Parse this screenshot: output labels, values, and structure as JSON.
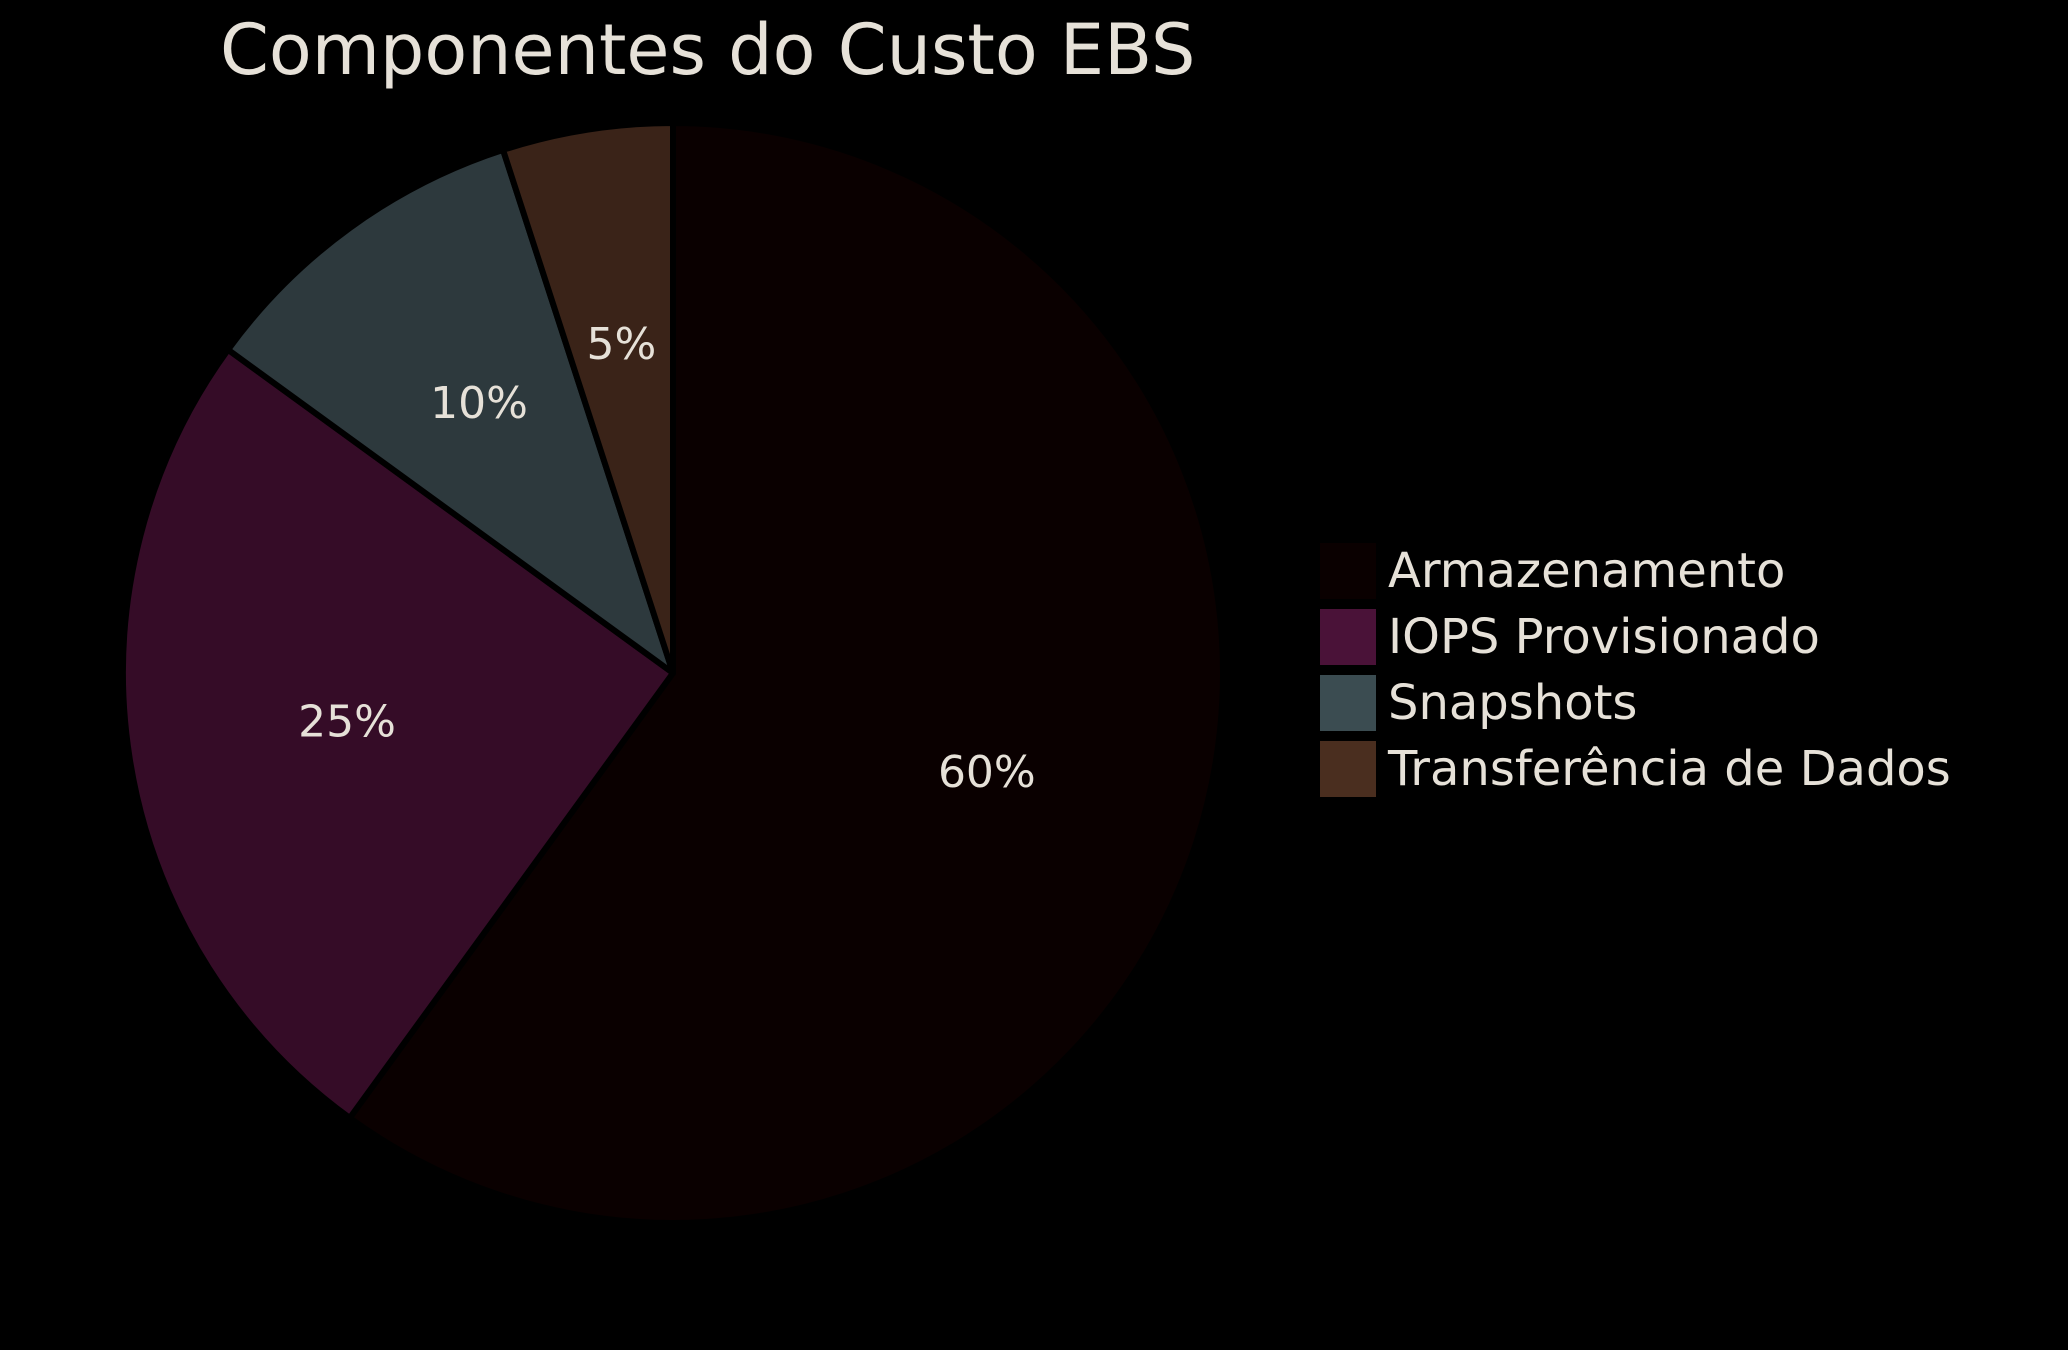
{
  "chart_data": {
    "type": "pie",
    "title": "Componentes do Custo EBS",
    "categories": [
      "Armazenamento",
      "IOPS Provisionado",
      "Snapshots",
      "Transferência de Dados"
    ],
    "values": [
      60,
      25,
      10,
      5
    ],
    "value_labels": [
      "60%",
      "25%",
      "10%",
      "5%"
    ],
    "colors": [
      "#0a0000",
      "#350c27",
      "#2d393d",
      "#3a2318"
    ],
    "legend_colors": [
      "#0a0000",
      "#4a1238",
      "#3b4c51",
      "#4a2e1f"
    ],
    "legend_position": "right",
    "start_angle": "12 o'clock",
    "direction": "clockwise",
    "edge_color": "#000000"
  }
}
